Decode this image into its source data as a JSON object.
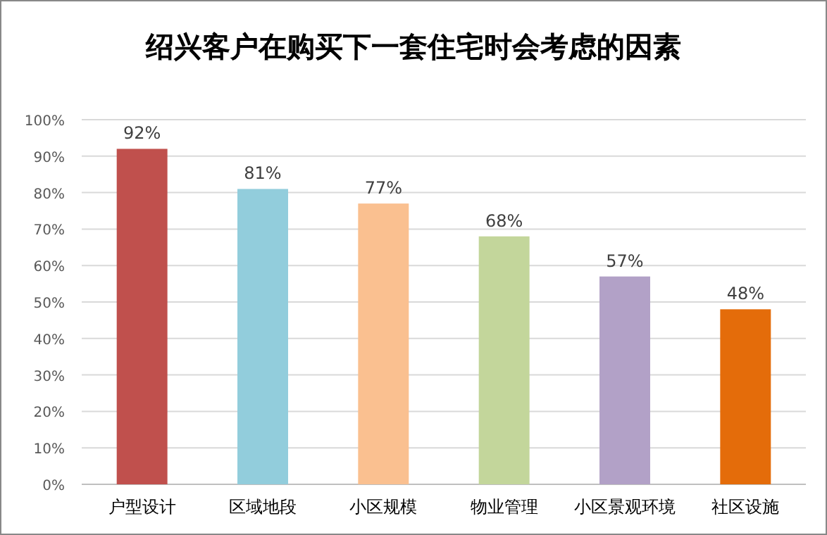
{
  "chart_data": {
    "type": "bar",
    "title": "绍兴客户在购买下一套住宅时会考虑的因素",
    "categories": [
      "户型设计",
      "区域地段",
      "小区规模",
      "物业管理",
      "小区景观环境",
      "社区设施"
    ],
    "values": [
      92,
      81,
      77,
      68,
      57,
      48
    ],
    "colors": [
      "#c0504d",
      "#92cddc",
      "#fac090",
      "#c3d69b",
      "#b2a1c7",
      "#e46c0a"
    ],
    "value_labels": [
      "92%",
      "81%",
      "77%",
      "68%",
      "57%",
      "48%"
    ],
    "ylim": [
      0,
      100
    ],
    "yticks": [
      {
        "value": 0,
        "label": "0%"
      },
      {
        "value": 10,
        "label": "10%"
      },
      {
        "value": 20,
        "label": "20%"
      },
      {
        "value": 30,
        "label": "30%"
      },
      {
        "value": 40,
        "label": "40%"
      },
      {
        "value": 50,
        "label": "50%"
      },
      {
        "value": 60,
        "label": "60%"
      },
      {
        "value": 70,
        "label": "70%"
      },
      {
        "value": 80,
        "label": "80%"
      },
      {
        "value": 90,
        "label": "90%"
      },
      {
        "value": 100,
        "label": "100%"
      }
    ],
    "grid": "y"
  }
}
